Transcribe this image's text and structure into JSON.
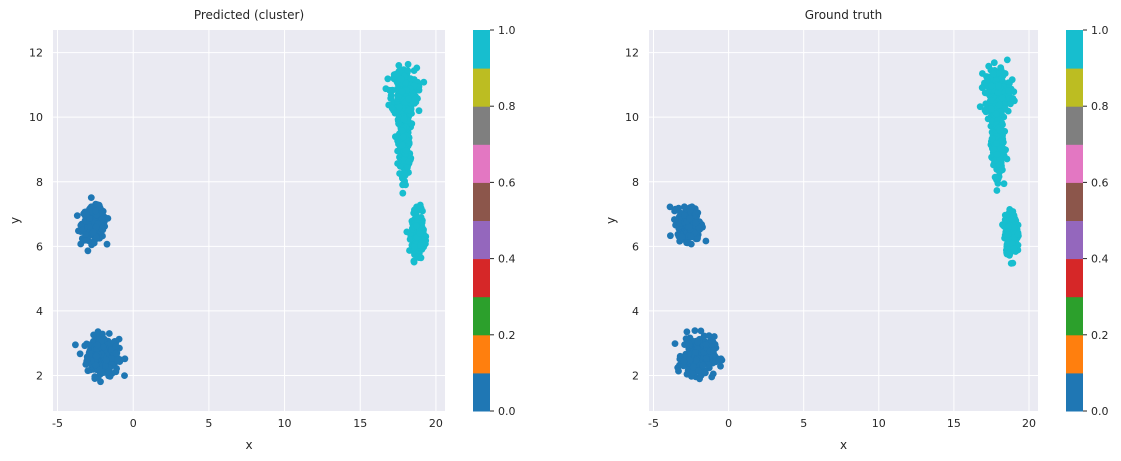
{
  "chart_data": [
    {
      "type": "scatter",
      "title": "Predicted (cluster)",
      "xlabel": "x",
      "ylabel": "y",
      "xlim": [
        -5.3,
        20.6
      ],
      "ylim": [
        0.9,
        12.7
      ],
      "xticks": [
        -5,
        0,
        5,
        10,
        15,
        20
      ],
      "yticks": [
        2,
        4,
        6,
        8,
        10,
        12
      ],
      "grid": true,
      "colorbar": {
        "ticks": [
          0.0,
          0.2,
          0.4,
          0.6,
          0.8,
          1.0
        ],
        "tick_labels": [
          "0.0",
          "0.2",
          "0.4",
          "0.6",
          "0.8",
          "1.0"
        ],
        "cmap": "tab10"
      },
      "clusters": [
        {
          "label_value": 0.0,
          "color": "#1f77b4",
          "center": [
            -2.0,
            2.6
          ],
          "spread": [
            0.95,
            0.55
          ]
        },
        {
          "label_value": 0.0,
          "color": "#1f77b4",
          "center": [
            -2.6,
            6.7
          ],
          "spread": [
            0.7,
            0.45
          ]
        },
        {
          "label_value": 1.0,
          "color": "#17becf",
          "center": [
            17.9,
            10.8
          ],
          "spread": [
            0.75,
            0.65
          ]
        },
        {
          "label_value": 1.0,
          "color": "#17becf",
          "center": [
            17.9,
            9.2
          ],
          "spread": [
            0.35,
            0.9
          ]
        },
        {
          "label_value": 1.0,
          "color": "#17becf",
          "center": [
            18.8,
            6.4
          ],
          "spread": [
            0.35,
            0.55
          ]
        }
      ]
    },
    {
      "type": "scatter",
      "title": "Ground truth",
      "xlabel": "x",
      "ylabel": "y",
      "xlim": [
        -5.3,
        20.6
      ],
      "ylim": [
        0.9,
        12.7
      ],
      "xticks": [
        -5,
        0,
        5,
        10,
        15,
        20
      ],
      "yticks": [
        2,
        4,
        6,
        8,
        10,
        12
      ],
      "grid": true,
      "colorbar": {
        "ticks": [
          0.0,
          0.2,
          0.4,
          0.6,
          0.8,
          1.0
        ],
        "tick_labels": [
          "0.0",
          "0.2",
          "0.4",
          "0.6",
          "0.8",
          "1.0"
        ],
        "cmap": "tab10"
      },
      "clusters": [
        {
          "label_value": 0.0,
          "color": "#1f77b4",
          "center": [
            -2.0,
            2.6
          ],
          "spread": [
            0.95,
            0.55
          ]
        },
        {
          "label_value": 0.0,
          "color": "#1f77b4",
          "center": [
            -2.6,
            6.7
          ],
          "spread": [
            0.7,
            0.45
          ]
        },
        {
          "label_value": 1.0,
          "color": "#17becf",
          "center": [
            17.9,
            10.8
          ],
          "spread": [
            0.75,
            0.65
          ]
        },
        {
          "label_value": 1.0,
          "color": "#17becf",
          "center": [
            17.9,
            9.2
          ],
          "spread": [
            0.35,
            0.9
          ]
        },
        {
          "label_value": 1.0,
          "color": "#17becf",
          "center": [
            18.8,
            6.4
          ],
          "spread": [
            0.35,
            0.55
          ]
        }
      ]
    }
  ],
  "colors": {
    "axes_background": "#eaeaf2",
    "grid": "#ffffff",
    "colormap": [
      "#1f77b4",
      "#ff7f0e",
      "#2ca02c",
      "#d62728",
      "#9467bd",
      "#8c564b",
      "#e377c2",
      "#7f7f7f",
      "#bcbd22",
      "#17becf"
    ]
  }
}
